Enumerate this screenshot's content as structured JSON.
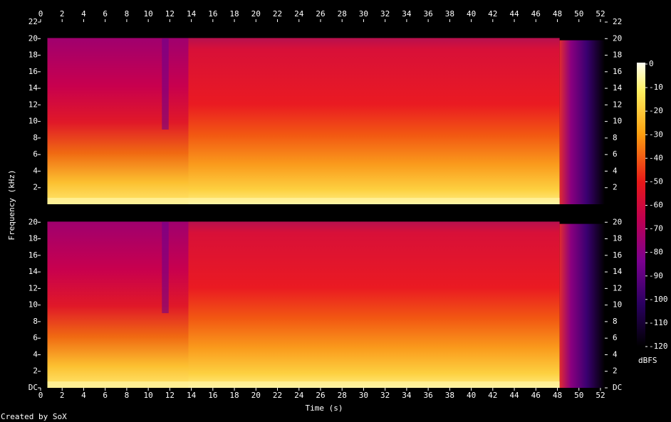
{
  "chart_data": [
    {
      "type": "spectrogram",
      "y_label": "Frequency (kHz)",
      "xlim": [
        0,
        52.4
      ],
      "xticks": [
        0,
        2,
        4,
        6,
        8,
        10,
        12,
        14,
        16,
        18,
        20,
        22,
        24,
        26,
        28,
        30,
        32,
        34,
        36,
        38,
        40,
        42,
        44,
        46,
        48,
        50,
        52
      ],
      "ylim": [
        0,
        22
      ],
      "yticks": [
        2,
        4,
        6,
        8,
        10,
        12,
        14,
        16,
        18,
        20,
        22
      ]
    },
    {
      "type": "spectrogram",
      "x_label": "Time (s)",
      "xlim": [
        0,
        52.4
      ],
      "xticks": [
        0,
        2,
        4,
        6,
        8,
        10,
        12,
        14,
        16,
        18,
        20,
        22,
        24,
        26,
        28,
        30,
        32,
        34,
        36,
        38,
        40,
        42,
        44,
        46,
        48,
        50,
        52
      ],
      "ylim": [
        0,
        22
      ],
      "yticks": [
        {
          "value": 0,
          "label": "DC"
        },
        2,
        4,
        6,
        8,
        10,
        12,
        14,
        16,
        18,
        20
      ]
    }
  ],
  "colorbar": {
    "label": "dBFS",
    "lim": [
      -120,
      0
    ],
    "ticks": [
      0,
      -10,
      -20,
      -30,
      -40,
      -50,
      -60,
      -70,
      -80,
      -90,
      -100,
      -110,
      -120
    ]
  },
  "credit": "Created by SoX"
}
